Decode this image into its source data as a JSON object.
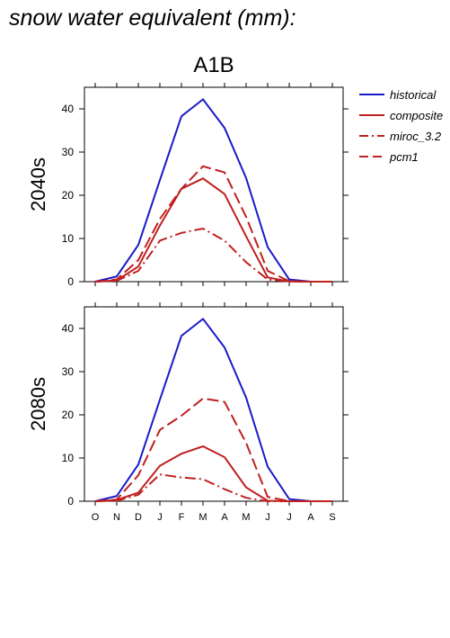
{
  "page": {
    "title": "snow water equivalent (mm):"
  },
  "colors": {
    "historical": "#1a1ac8",
    "projection": "#c02020",
    "axis": "#000000"
  },
  "chart_data": [
    {
      "type": "line",
      "title": "A1B",
      "ylabel": "2040s",
      "categories": [
        "O",
        "N",
        "D",
        "J",
        "F",
        "M",
        "A",
        "M",
        "J",
        "J",
        "A",
        "S"
      ],
      "ylim": [
        0,
        45
      ],
      "yticks": [
        0,
        10,
        20,
        30,
        40
      ],
      "grid": false,
      "legend": "right",
      "series": [
        {
          "name": "historical",
          "style": "solid",
          "values": [
            0,
            1.2,
            8.5,
            23.5,
            38.3,
            42.2,
            35.6,
            24.0,
            8.0,
            0.5,
            0,
            0
          ]
        },
        {
          "name": "composite",
          "style": "solid",
          "values": [
            0,
            0.3,
            3.5,
            13.0,
            21.5,
            23.9,
            20.3,
            10.5,
            1.0,
            0.05,
            0,
            0
          ]
        },
        {
          "name": "miroc_3.2",
          "style": "dashdot",
          "values": [
            0,
            0.2,
            2.5,
            9.5,
            11.3,
            12.3,
            9.5,
            4.5,
            0.5,
            0.05,
            0,
            0
          ]
        },
        {
          "name": "pcm1",
          "style": "dashed",
          "values": [
            0,
            0.5,
            5.0,
            14.5,
            21.5,
            26.7,
            25.3,
            15.0,
            2.5,
            0.1,
            0,
            0
          ]
        }
      ]
    },
    {
      "type": "line",
      "title": "",
      "ylabel": "2080s",
      "categories": [
        "O",
        "N",
        "D",
        "J",
        "F",
        "M",
        "A",
        "M",
        "J",
        "J",
        "A",
        "S"
      ],
      "ylim": [
        0,
        45
      ],
      "yticks": [
        0,
        10,
        20,
        30,
        40
      ],
      "grid": false,
      "series": [
        {
          "name": "historical",
          "style": "solid",
          "values": [
            0,
            1.2,
            8.5,
            23.5,
            38.3,
            42.2,
            35.6,
            24.0,
            8.0,
            0.5,
            0,
            0
          ]
        },
        {
          "name": "composite",
          "style": "solid",
          "values": [
            0,
            0.3,
            2.0,
            8.2,
            11.0,
            12.7,
            10.2,
            3.2,
            0.1,
            0,
            0,
            0
          ]
        },
        {
          "name": "miroc_3.2",
          "style": "dashdot",
          "values": [
            0,
            0.1,
            1.5,
            6.2,
            5.5,
            5.1,
            2.8,
            0.8,
            0,
            0,
            0,
            0
          ]
        },
        {
          "name": "pcm1",
          "style": "dashed",
          "values": [
            0,
            0.4,
            6.0,
            16.5,
            19.8,
            23.8,
            23.0,
            13.5,
            1.0,
            0.05,
            0,
            0
          ]
        }
      ]
    }
  ]
}
